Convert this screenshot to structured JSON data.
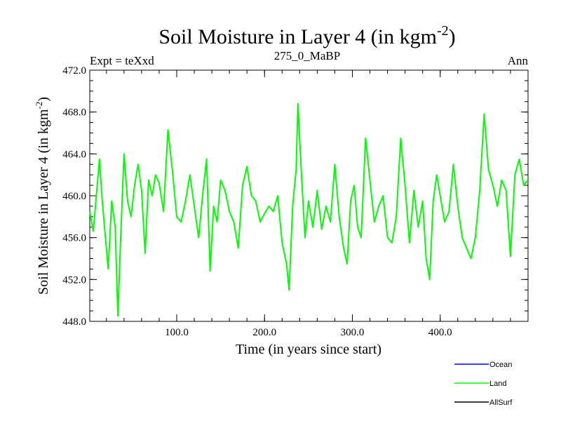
{
  "chart_data": {
    "type": "line",
    "title": "Soil Moisture in Layer 4 (in kgm",
    "title_superscript": "-2",
    "title_suffix": ")",
    "left_label": "Expt = teXxd",
    "center_label": "275_0_MaBP",
    "right_label": "Ann",
    "xlabel": "Time (in years since start)",
    "ylabel": "Soil Moisture in Layer 4 (in kgm",
    "ylabel_superscript": "-2",
    "ylabel_suffix": ")",
    "xlim": [
      1,
      500
    ],
    "ylim": [
      448,
      472
    ],
    "x_ticks": [
      100,
      200,
      300,
      400
    ],
    "x_tick_labels": [
      "100.0",
      "200.0",
      "300.0",
      "400.0"
    ],
    "y_ticks": [
      448,
      452,
      456,
      460,
      464,
      468,
      472
    ],
    "y_tick_labels": [
      "448.0",
      "452.0",
      "456.0",
      "460.0",
      "464.0",
      "468.0",
      "472.0"
    ],
    "legend_position": "bottom-right",
    "series": [
      {
        "name": "Ocean",
        "color": "#0000ff",
        "values": []
      },
      {
        "name": "Land",
        "color": "#00ff00",
        "x": [
          1,
          5,
          9,
          12,
          15,
          18,
          22,
          26,
          30,
          33,
          36,
          40,
          44,
          48,
          52,
          56,
          60,
          64,
          68,
          72,
          76,
          80,
          85,
          90,
          95,
          100,
          105,
          110,
          115,
          120,
          125,
          130,
          134,
          138,
          142,
          146,
          150,
          155,
          160,
          165,
          170,
          175,
          180,
          185,
          190,
          195,
          200,
          205,
          210,
          215,
          220,
          225,
          228,
          232,
          236,
          238,
          242,
          246,
          250,
          255,
          260,
          265,
          270,
          275,
          280,
          285,
          290,
          294,
          298,
          302,
          306,
          310,
          315,
          320,
          325,
          330,
          335,
          340,
          345,
          350,
          355,
          360,
          365,
          370,
          375,
          380,
          384,
          388,
          392,
          396,
          400,
          405,
          410,
          415,
          420,
          425,
          430,
          435,
          440,
          445,
          450,
          455,
          460,
          465,
          470,
          475,
          480,
          485,
          490,
          495,
          500
        ],
        "values": [
          458.5,
          456.6,
          460.5,
          463.5,
          459.8,
          456.8,
          453.0,
          459.5,
          457.0,
          448.5,
          455.5,
          464.0,
          459.5,
          458.0,
          461.0,
          463.0,
          460.5,
          454.5,
          461.5,
          460.0,
          462.0,
          461.2,
          458.5,
          466.3,
          462.5,
          458.0,
          457.5,
          459.5,
          462.0,
          459.0,
          456.0,
          460.5,
          463.5,
          452.8,
          459.0,
          457.5,
          461.5,
          460.5,
          458.5,
          457.5,
          455.0,
          461.0,
          462.8,
          460.0,
          459.5,
          457.5,
          458.3,
          459.0,
          458.5,
          460.0,
          455.5,
          453.5,
          451.0,
          459.0,
          462.5,
          468.8,
          462.0,
          456.0,
          459.5,
          457.0,
          460.5,
          456.8,
          459.0,
          457.5,
          463.0,
          458.0,
          455.0,
          453.5,
          459.5,
          461.0,
          457.0,
          456.0,
          465.5,
          461.5,
          457.5,
          459.0,
          460.0,
          456.0,
          455.5,
          458.0,
          465.5,
          461.0,
          455.5,
          460.5,
          457.0,
          459.5,
          454.0,
          452.0,
          459.5,
          462.0,
          460.0,
          457.5,
          458.5,
          463.0,
          459.0,
          456.0,
          455.0,
          454.0,
          456.0,
          460.5,
          467.8,
          462.5,
          461.0,
          459.0,
          461.5,
          460.5,
          454.2,
          462.0,
          463.5,
          461.0,
          461.5
        ]
      },
      {
        "name": "AllSurf",
        "color": "#000000",
        "values": []
      }
    ]
  }
}
